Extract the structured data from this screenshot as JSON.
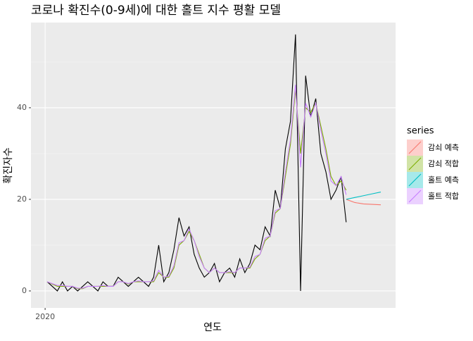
{
  "chart_data": {
    "type": "line",
    "title": "코로나 확진수(0-9세)에 대한 홀트 지수 평활 모델",
    "x_label": "연도",
    "y_label": "확진자수",
    "legend_title": "series",
    "xlim": [
      2019.933,
      2021.66
    ],
    "xticks": [
      2020
    ],
    "ylim": [
      -3.7,
      58.6
    ],
    "yticks": [
      0,
      20,
      40
    ],
    "y_minor_ticks": [
      10,
      30,
      50
    ],
    "grid": true,
    "legend_position": "right",
    "x": [
      2020.01,
      2020.034,
      2020.058,
      2020.082,
      2020.106,
      2020.13,
      2020.154,
      2020.178,
      2020.202,
      2020.226,
      2020.25,
      2020.274,
      2020.298,
      2020.322,
      2020.346,
      2020.37,
      2020.394,
      2020.418,
      2020.442,
      2020.466,
      2020.49,
      2020.514,
      2020.538,
      2020.562,
      2020.586,
      2020.61,
      2020.634,
      2020.658,
      2020.682,
      2020.706,
      2020.73,
      2020.754,
      2020.778,
      2020.802,
      2020.826,
      2020.85,
      2020.874,
      2020.898,
      2020.922,
      2020.946,
      2020.97,
      2020.994,
      2021.018,
      2021.042,
      2021.066,
      2021.09,
      2021.114,
      2021.138,
      2021.162,
      2021.186,
      2021.21,
      2021.234,
      2021.258,
      2021.282,
      2021.306,
      2021.33,
      2021.354,
      2021.378,
      2021.402,
      2021.426
    ],
    "series": [
      {
        "color": "#000000",
        "values": [
          2,
          1,
          0,
          2,
          0,
          1,
          0,
          1,
          2,
          1,
          0,
          2,
          1,
          1,
          3,
          2,
          1,
          2,
          3,
          2,
          1,
          3,
          10,
          2,
          4,
          9,
          16,
          12,
          14,
          8,
          5,
          3,
          4,
          6,
          2,
          4,
          5,
          3,
          7,
          4,
          6,
          10,
          9,
          14,
          12,
          22,
          18,
          31,
          37,
          56,
          0,
          47,
          38,
          42,
          30,
          26,
          20,
          22,
          25,
          15
        ]
      },
      {
        "name": "감쇠 적합",
        "color": "#7CAE00",
        "values": [
          2,
          1.5,
          1,
          1,
          1,
          1,
          0.5,
          0.5,
          1,
          1,
          1,
          1,
          1,
          1,
          2,
          2,
          1.5,
          2,
          2,
          2,
          2,
          2,
          4,
          3,
          3,
          5,
          10,
          11,
          13,
          11,
          8,
          5,
          4,
          5,
          4,
          4,
          4,
          4,
          5,
          5,
          5,
          7,
          8,
          11,
          12,
          17,
          18,
          25,
          32,
          44,
          30,
          40,
          39,
          41,
          36,
          31,
          25,
          23,
          24,
          22
        ]
      },
      {
        "name": "홀트 적합",
        "color": "#C77CFF",
        "values": [
          2,
          1.6,
          1.2,
          1.2,
          1,
          1,
          0.6,
          0.6,
          1,
          1,
          1,
          1.2,
          1,
          1,
          2,
          2,
          1.6,
          2,
          2.2,
          2,
          2,
          2.2,
          4.5,
          3,
          3.2,
          5.5,
          10.5,
          11,
          13.5,
          11,
          7.5,
          5,
          4,
          5,
          4,
          4,
          4.2,
          4,
          5,
          5,
          5.2,
          7.5,
          8,
          11.5,
          12,
          17.5,
          18,
          26,
          33,
          45,
          27,
          41,
          38,
          41,
          35,
          30,
          24,
          23,
          25,
          21
        ]
      },
      {
        "name": "감쇠 예측",
        "color": "#F8766D",
        "x": [
          2021.426,
          2021.467,
          2021.508,
          2021.549,
          2021.59
        ],
        "values": [
          20,
          19.3,
          19,
          18.9,
          18.8
        ]
      },
      {
        "name": "홀트 예측",
        "color": "#00BFC4",
        "x": [
          2021.426,
          2021.467,
          2021.508,
          2021.549,
          2021.59
        ],
        "values": [
          20,
          20.4,
          20.8,
          21.2,
          21.6
        ]
      }
    ],
    "legend_order": [
      3,
      1,
      4,
      2
    ]
  }
}
